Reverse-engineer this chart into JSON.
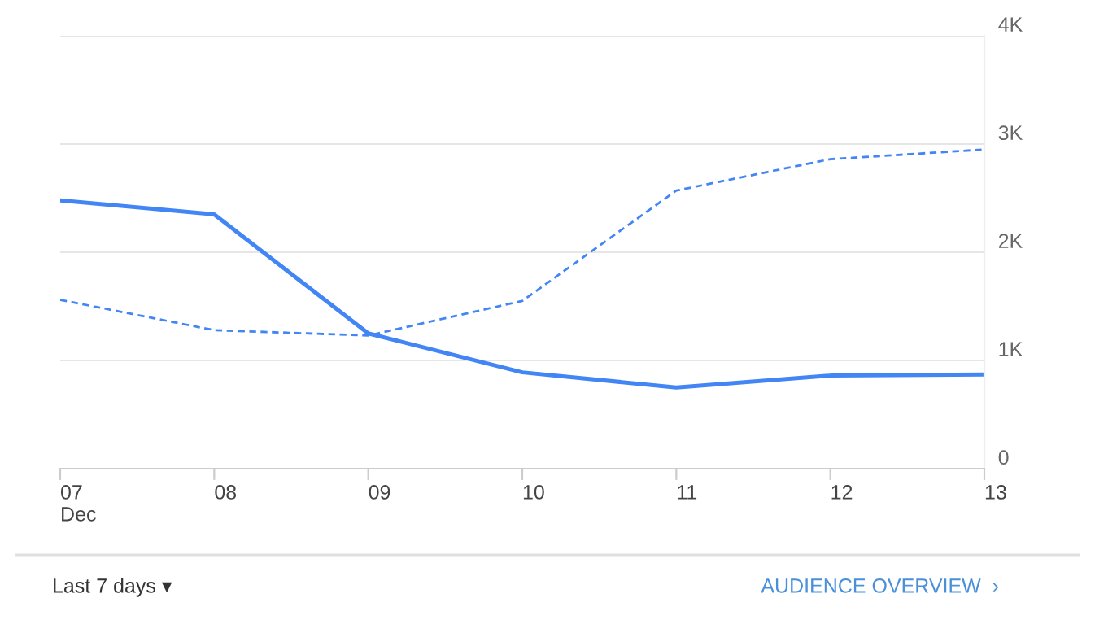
{
  "chart_data": {
    "type": "line",
    "categories": [
      "07\nDec",
      "08",
      "09",
      "10",
      "11",
      "12",
      "13"
    ],
    "series": [
      {
        "color": "#4285f4",
        "line_style": "solid",
        "values": [
          2480,
          2350,
          1250,
          890,
          750,
          860,
          870
        ]
      },
      {
        "color": "#4285f4",
        "line_style": "dashed",
        "values": [
          1560,
          1280,
          1230,
          1550,
          2570,
          2860,
          2950
        ]
      }
    ],
    "ylim": [
      0,
      4000
    ],
    "yticks": [
      {
        "value": 0,
        "label": "0"
      },
      {
        "value": 1000,
        "label": "1K"
      },
      {
        "value": 2000,
        "label": "2K"
      },
      {
        "value": 3000,
        "label": "3K"
      },
      {
        "value": 4000,
        "label": "4K"
      }
    ],
    "grid": "y",
    "marker": "none",
    "annotations": [
      "Last 7 days ▾",
      "AUDIENCE OVERVIEW  ›"
    ]
  }
}
